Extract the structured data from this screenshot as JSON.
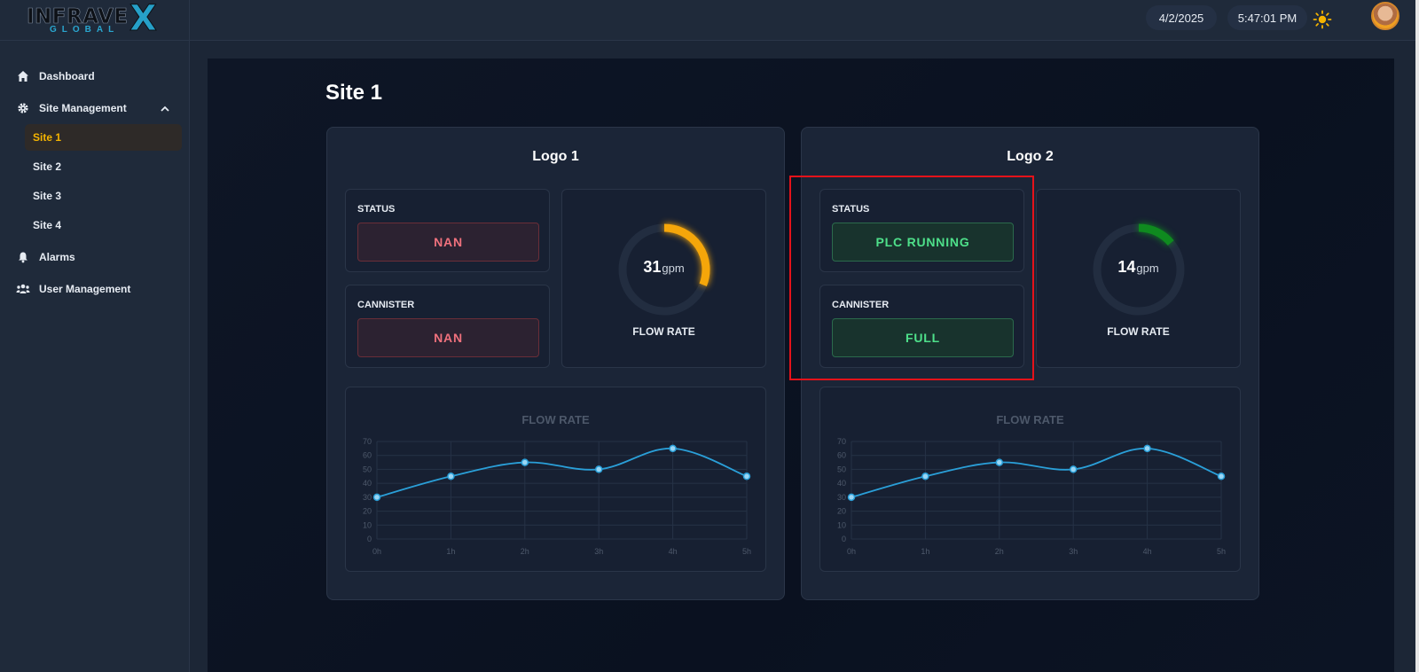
{
  "brand": {
    "name": "INFRAVE",
    "x": "X",
    "sub": "GLOBAL"
  },
  "header": {
    "date": "4/2/2025",
    "time": "5:47:01 PM"
  },
  "sidebar": {
    "items": [
      {
        "label": "Dashboard",
        "icon": "home-icon"
      },
      {
        "label": "Site Management",
        "icon": "gear-icon"
      },
      {
        "label": "Alarms",
        "icon": "bell-icon"
      },
      {
        "label": "User Management",
        "icon": "users-icon"
      }
    ],
    "sites": [
      "Site 1",
      "Site 2",
      "Site 3",
      "Site 4"
    ]
  },
  "page": {
    "title": "Site 1"
  },
  "devices": [
    {
      "title": "Logo 1",
      "status_label": "STATUS",
      "status_value": "NAN",
      "cannister_label": "CANNISTER",
      "cannister_value": "NAN",
      "flow": {
        "value": "31",
        "unit": "gpm",
        "label": "FLOW RATE",
        "fraction": 0.31,
        "color": "#f5a60a"
      },
      "chart_title": "FLOW RATE"
    },
    {
      "title": "Logo 2",
      "status_label": "STATUS",
      "status_value": "PLC RUNNING",
      "cannister_label": "CANNISTER",
      "cannister_value": "FULL",
      "flow": {
        "value": "14",
        "unit": "gpm",
        "label": "FLOW RATE",
        "fraction": 0.14,
        "color": "#0f8a1f"
      },
      "chart_title": "FLOW RATE"
    }
  ],
  "chart_data": [
    {
      "type": "line",
      "title": "FLOW RATE",
      "categories": [
        "0h",
        "1h",
        "2h",
        "3h",
        "4h",
        "5h"
      ],
      "values": [
        30,
        45,
        55,
        50,
        65,
        45
      ],
      "ylim": [
        0,
        70
      ],
      "yticks": [
        "0",
        "10",
        "20",
        "30",
        "40",
        "50",
        "60",
        "70"
      ],
      "grid": true,
      "color": "#2a9fd8"
    },
    {
      "type": "line",
      "title": "FLOW RATE",
      "categories": [
        "0h",
        "1h",
        "2h",
        "3h",
        "4h",
        "5h"
      ],
      "values": [
        30,
        45,
        55,
        50,
        65,
        45
      ],
      "ylim": [
        0,
        70
      ],
      "yticks": [
        "0",
        "10",
        "20",
        "30",
        "40",
        "50",
        "60",
        "70"
      ],
      "grid": true,
      "color": "#2a9fd8"
    }
  ],
  "colors": {
    "accent": "#f5b400",
    "highlight": "#e5121a"
  }
}
